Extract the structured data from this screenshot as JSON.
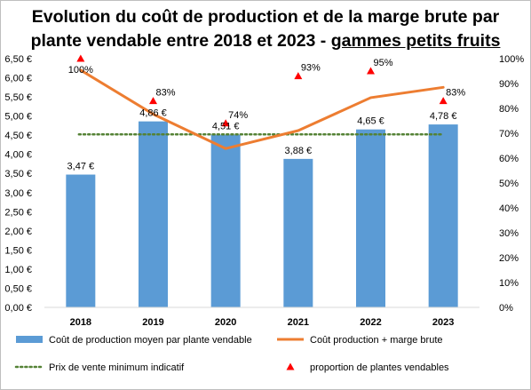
{
  "title": {
    "line1": "Evolution du coût de production et de la marge brute par",
    "line2_main": "plante vendable entre 2018 et 2023 - ",
    "line2_underlined": "gammes petits fruits"
  },
  "chart_data": {
    "type": "bar",
    "categories": [
      "2018",
      "2019",
      "2020",
      "2021",
      "2022",
      "2023"
    ],
    "y_left": {
      "min": 0,
      "max": 6.5,
      "step": 0.5,
      "tick_labels": [
        "0,00 €",
        "0,50 €",
        "1,00 €",
        "1,50 €",
        "2,00 €",
        "2,50 €",
        "3,00 €",
        "3,50 €",
        "4,00 €",
        "4,50 €",
        "5,00 €",
        "5,50 €",
        "6,00 €",
        "6,50 €"
      ]
    },
    "y_right": {
      "min": 0,
      "max": 100,
      "step": 10,
      "tick_labels": [
        "0%",
        "10%",
        "20%",
        "30%",
        "40%",
        "50%",
        "60%",
        "70%",
        "80%",
        "90%",
        "100%"
      ]
    },
    "grid": false,
    "series": [
      {
        "name": "Coût de production moyen par plante vendable",
        "type": "bar",
        "axis": "left",
        "color": "#5b9bd5",
        "values": [
          3.47,
          4.86,
          4.51,
          3.88,
          4.65,
          4.78
        ],
        "labels": [
          "3,47 €",
          "4,86 €",
          "4,51 €",
          "3,88 €",
          "4,65 €",
          "4,78 €"
        ]
      },
      {
        "name": "Coût production + marge brute",
        "type": "line",
        "axis": "left",
        "color": "#ed7d31",
        "values": [
          6.2,
          5.05,
          4.15,
          4.62,
          5.48,
          5.75
        ]
      },
      {
        "name": "Prix de vente minimum indicatif",
        "type": "dotted-line",
        "axis": "left",
        "color": "#548235",
        "values": [
          4.52,
          4.52,
          4.52,
          4.52,
          4.52,
          4.52
        ]
      },
      {
        "name": "proportion de plantes vendables",
        "type": "scatter",
        "axis": "right",
        "color": "#ff0000",
        "marker": "triangle",
        "values": [
          100,
          83,
          74,
          93,
          95,
          83
        ],
        "labels": [
          "100%",
          "83%",
          "74%",
          "93%",
          "95%",
          "83%"
        ]
      }
    ],
    "legend": "bottom"
  }
}
